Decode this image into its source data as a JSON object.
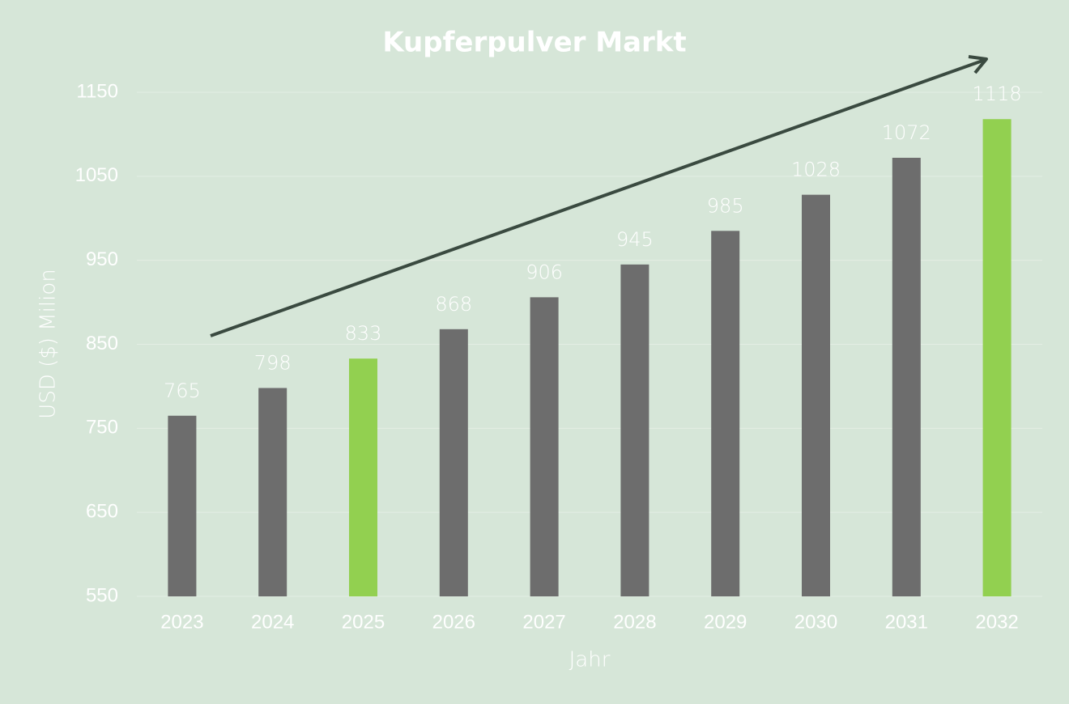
{
  "chart_data": {
    "type": "bar",
    "title": "Kupferpulver Markt",
    "x_label": "Jahr",
    "y_label": "USD ($) Milion",
    "categories": [
      "2023",
      "2024",
      "2025",
      "2026",
      "2027",
      "2028",
      "2029",
      "2030",
      "2031",
      "2032"
    ],
    "values": [
      765,
      798,
      833,
      868,
      906,
      945,
      985,
      1028,
      1072,
      1118
    ],
    "colors": [
      "#6d6d6d",
      "#6d6d6d",
      "#92d050",
      "#6d6d6d",
      "#6d6d6d",
      "#6d6d6d",
      "#6d6d6d",
      "#6d6d6d",
      "#6d6d6d",
      "#92d050"
    ],
    "ylim": [
      550,
      1150
    ],
    "yticks": [
      550,
      650,
      750,
      850,
      950,
      1050,
      1150
    ],
    "grid": true
  }
}
